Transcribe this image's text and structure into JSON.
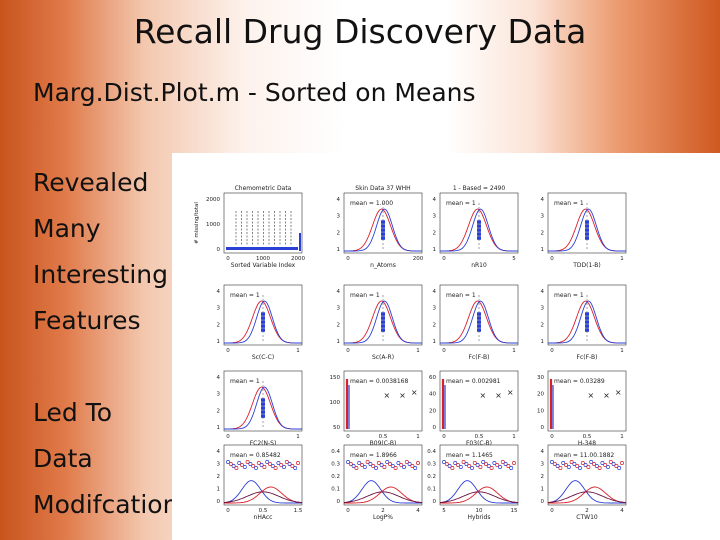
{
  "slide": {
    "title": "Recall Drug Discovery Data",
    "subtitle": "Marg.Dist.Plot.m - Sorted on Means",
    "bullets": [
      "Revealed",
      "Many",
      "Interesting",
      "Features",
      "Led To",
      "Data",
      "Modifcation"
    ]
  },
  "colors": {
    "accent": "#c8541c",
    "series_blue": "#2a3fd6",
    "series_red": "#d8202a"
  },
  "chart_data": {
    "type": "small-multiples",
    "panels": [
      {
        "title": "Chemometric Data",
        "xlabel": "Sorted Variable Index",
        "ylabel": "# missing/total",
        "yticks": [
          "2000",
          "1000",
          "0"
        ],
        "xticks": [
          "0",
          "1000",
          "2000"
        ]
      },
      {
        "title": "Skin Data 37 WHH",
        "mean": "mean = 1.000",
        "xlabel": "n_Atoms",
        "yticks": [
          "4",
          "3",
          "2",
          "1"
        ],
        "xticks": [
          "0",
          "200"
        ]
      },
      {
        "title": "1 - Based = 2490",
        "mean": "mean = 1",
        "xlabel": "nR10",
        "yticks": [
          "4",
          "3",
          "2",
          "1"
        ],
        "xticks": [
          "0",
          "5"
        ]
      },
      {
        "title": "",
        "mean": "mean = 1",
        "xlabel": "TDD(1-B)",
        "yticks": [
          "4",
          "3",
          "2",
          "1"
        ],
        "xticks": [
          "0",
          "1"
        ]
      },
      {
        "title": "",
        "mean": "mean = 1",
        "xlabel": "Sc(C-C)",
        "yticks": [
          "4",
          "3",
          "2",
          "1"
        ],
        "xticks": [
          "0",
          "1"
        ]
      },
      {
        "title": "",
        "mean": "mean = 1",
        "xlabel": "Sc(A-R)",
        "yticks": [
          "4",
          "3",
          "2",
          "1"
        ],
        "xticks": [
          "0",
          "1"
        ]
      },
      {
        "title": "",
        "mean": "mean = 1",
        "xlabel": "Fc(F-B)",
        "yticks": [
          "4",
          "3",
          "2",
          "1"
        ],
        "xticks": [
          "0",
          "1"
        ]
      },
      {
        "title": "",
        "mean": "mean = 1",
        "xlabel": "Fc(F-B)",
        "yticks": [
          "4",
          "3",
          "2",
          "1"
        ],
        "xticks": [
          "0",
          "1"
        ]
      },
      {
        "title": "",
        "mean": "mean = 1",
        "xlabel": "FC2(N-S)",
        "yticks": [
          "4",
          "3",
          "2",
          "1"
        ],
        "xticks": [
          "0",
          "1"
        ]
      },
      {
        "title": "",
        "mean": "mean = 0.0038168",
        "xlabel": "B09(C-B)",
        "yticks": [
          "150",
          "100",
          "50"
        ],
        "xticks": [
          "0",
          "0.5",
          "1"
        ]
      },
      {
        "title": "",
        "mean": "mean = 0.002981",
        "xlabel": "F03(C-B)",
        "yticks": [
          "60",
          "40",
          "20",
          "0"
        ],
        "xticks": [
          "0",
          "0.5",
          "1"
        ]
      },
      {
        "title": "",
        "mean": "mean = 0.03289",
        "xlabel": "H-348",
        "yticks": [
          "30",
          "20",
          "10",
          "0"
        ],
        "xticks": [
          "0",
          "0.5",
          "1"
        ]
      },
      {
        "title": "",
        "mean": "mean = 0.85482",
        "xlabel": "nHAcc",
        "yticks": [
          "4",
          "3",
          "2",
          "1",
          "0"
        ],
        "xticks": [
          "0",
          "0.5",
          "1.5"
        ]
      },
      {
        "title": "",
        "mean": "mean = 1.8966",
        "xlabel": "LogP%",
        "yticks": [
          "0.4",
          "0.3",
          "0.2",
          "0.1",
          "0"
        ],
        "xticks": [
          "0",
          "2",
          "4"
        ]
      },
      {
        "title": "",
        "mean": "mean = 1.1465",
        "xlabel": "Hybrids",
        "yticks": [
          "0.4",
          "0.3",
          "0.2",
          "0.1",
          "0"
        ],
        "xticks": [
          "5",
          "10",
          "15"
        ]
      },
      {
        "title": "",
        "mean": "mean = 11.00.1882",
        "xlabel": "CTW10",
        "yticks": [
          "4",
          "3",
          "2",
          "1",
          "0"
        ],
        "xticks": [
          "0",
          "2",
          "4"
        ]
      }
    ]
  }
}
